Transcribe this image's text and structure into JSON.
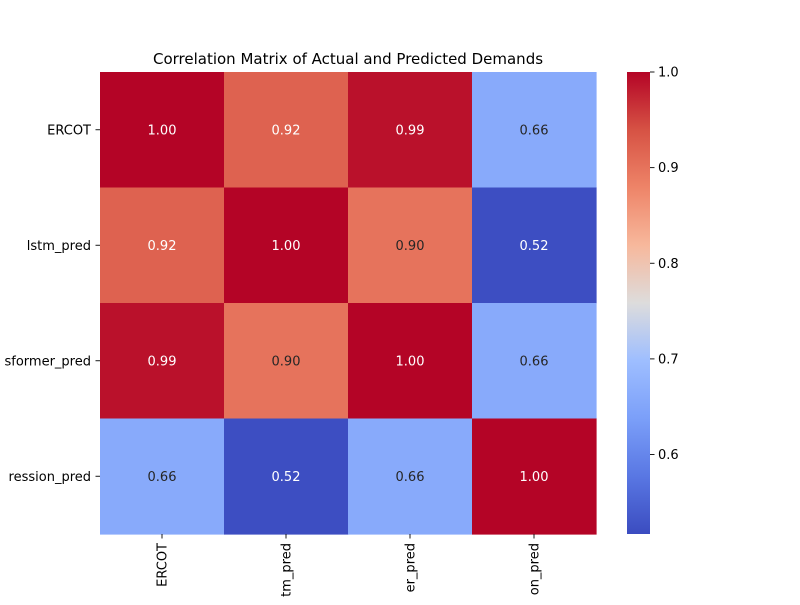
{
  "chart_data": {
    "type": "heatmap",
    "title": "Correlation Matrix of Actual and Predicted Demands",
    "row_labels": [
      "ERCOT",
      "lstm_pred",
      "sformer_pred",
      "ression_pred"
    ],
    "col_labels": [
      "ERCOT",
      "tm_pred",
      "er_pred",
      "on_pred"
    ],
    "values": [
      [
        1.0,
        0.92,
        0.99,
        0.66
      ],
      [
        0.92,
        1.0,
        0.9,
        0.52
      ],
      [
        0.99,
        0.9,
        1.0,
        0.66
      ],
      [
        0.66,
        0.52,
        0.66,
        1.0
      ]
    ],
    "value_format": "2-decimals",
    "colorbar": {
      "colormap": "coolwarm",
      "range": [
        0.5169,
        1.0
      ],
      "ticks": [
        "0.6",
        "0.7",
        "0.8",
        "0.9",
        "1.0"
      ]
    }
  }
}
